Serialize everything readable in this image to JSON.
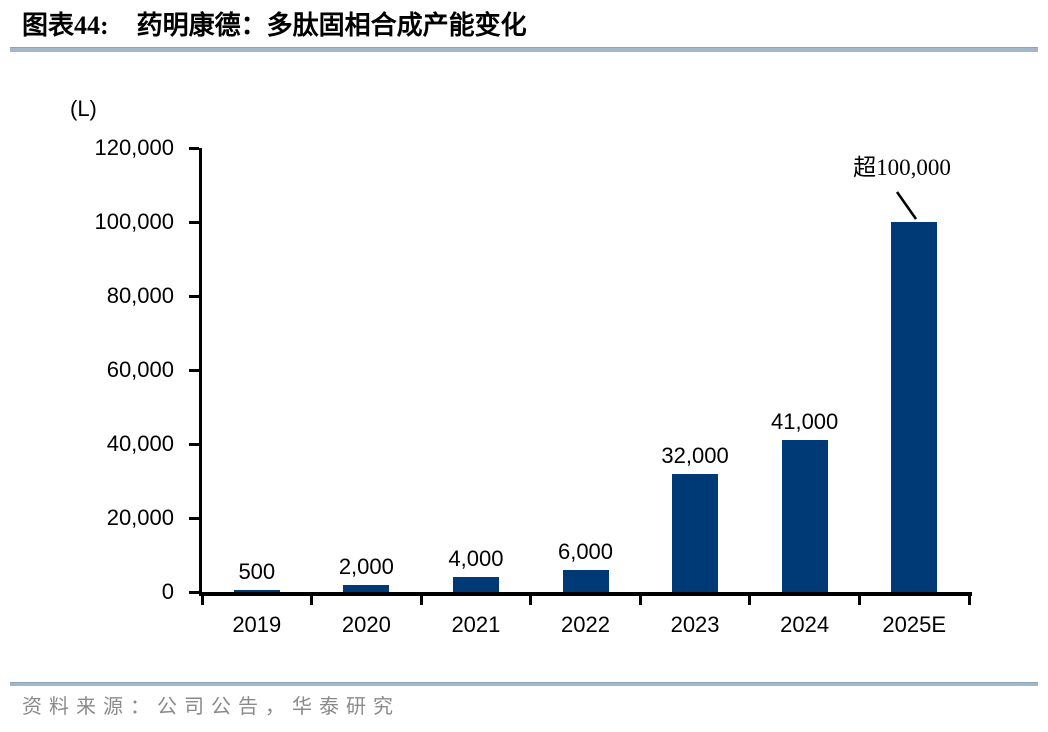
{
  "figure": {
    "label": "图表44:",
    "title": "药明康德：多肽固相合成产能变化"
  },
  "chart_data": {
    "type": "bar",
    "title": "药明康德：多肽固相合成产能变化",
    "unit_label": "(L)",
    "categories": [
      "2019",
      "2020",
      "2021",
      "2022",
      "2023",
      "2024",
      "2025E"
    ],
    "values": [
      500,
      2000,
      4000,
      6000,
      32000,
      41000,
      100000
    ],
    "value_labels": [
      "500",
      "2,000",
      "4,000",
      "6,000",
      "32,000",
      "41,000",
      null
    ],
    "annotation": {
      "text": "超100,000",
      "category": "2025E"
    },
    "ylim": [
      0,
      120000
    ],
    "yticks": [
      0,
      20000,
      40000,
      60000,
      80000,
      100000,
      120000
    ],
    "ytick_labels": [
      "0",
      "20,000",
      "40,000",
      "60,000",
      "80,000",
      "100,000",
      "120,000"
    ],
    "xlabel": "",
    "ylabel": "(L)",
    "grid": false,
    "legend": false,
    "bar_color": "#003a76"
  },
  "source": {
    "text": "资料来源：公司公告，华泰研究"
  },
  "colors": {
    "bar": "#003a76",
    "rule": "#a3b7c8",
    "axis": "#000000",
    "source_text": "#8a8a8a"
  }
}
